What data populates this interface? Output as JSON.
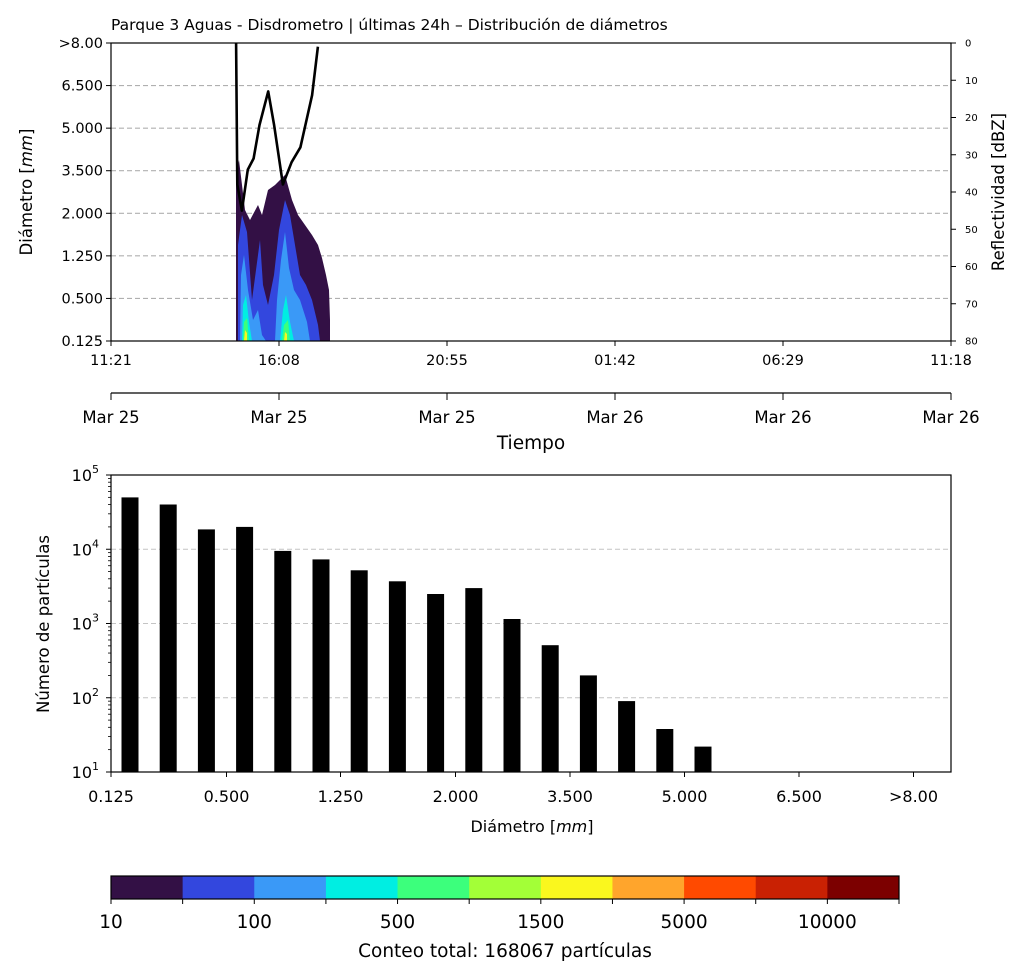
{
  "chart_data": [
    {
      "type": "heatmap",
      "title": "Parque 3 Aguas - Disdrometro | últimas 24h – Distribución de diámetros",
      "ylabel_prefix": "Diámetro [",
      "ylabel_unit": "mm",
      "ylabel_suffix": "]",
      "y2label": "Reflectividad [dBZ]",
      "xlabel": "Tiempo",
      "x_time_ticks": [
        "11:21",
        "16:08",
        "20:55",
        "01:42",
        "06:29",
        "11:18"
      ],
      "x_date_ticks": [
        "Mar 25",
        "Mar 25",
        "Mar 25",
        "Mar 26",
        "Mar 26",
        "Mar 26"
      ],
      "y_ticks": [
        "0.125",
        "0.500",
        "1.250",
        "2.000",
        "3.500",
        "5.000",
        "6.500",
        ">8.00"
      ],
      "y2_ticks": [
        "0",
        "10",
        "20",
        "30",
        "40",
        "50",
        "60",
        "70",
        "80"
      ],
      "y2lim": [
        80,
        0
      ],
      "grid": "horizontal dashed",
      "reflectivity_line_color": "#000000",
      "reflectivity_approx": [
        {
          "t": "14:55",
          "dbz": 0
        },
        {
          "t": "14:57",
          "dbz": 38
        },
        {
          "t": "15:05",
          "dbz": 45
        },
        {
          "t": "15:15",
          "dbz": 34
        },
        {
          "t": "15:25",
          "dbz": 31
        },
        {
          "t": "15:35",
          "dbz": 22
        },
        {
          "t": "15:50",
          "dbz": 13
        },
        {
          "t": "16:00",
          "dbz": 22
        },
        {
          "t": "16:15",
          "dbz": 38
        },
        {
          "t": "16:30",
          "dbz": 32
        },
        {
          "t": "16:45",
          "dbz": 28
        },
        {
          "t": "17:05",
          "dbz": 14
        },
        {
          "t": "17:15",
          "dbz": 1
        }
      ]
    },
    {
      "type": "bar",
      "xlabel_prefix": "Diámetro [",
      "xlabel_unit": "mm",
      "xlabel_suffix": "]",
      "ylabel": "Número de partículas",
      "y_scale": "log",
      "ylim": [
        10,
        100000
      ],
      "y_ticks": [
        {
          "base": "10",
          "exp": "1"
        },
        {
          "base": "10",
          "exp": "2"
        },
        {
          "base": "10",
          "exp": "3"
        },
        {
          "base": "10",
          "exp": "4"
        },
        {
          "base": "10",
          "exp": "5"
        }
      ],
      "x_ticks": [
        "0.125",
        "0.500",
        "1.250",
        "2.000",
        "3.500",
        "5.000",
        "6.500",
        ">8.00"
      ],
      "bar_color": "#000000",
      "values": [
        50000,
        40000,
        18500,
        20000,
        9500,
        7300,
        5200,
        3700,
        2500,
        3000,
        1150,
        510,
        200,
        90,
        38,
        22,
        0,
        0,
        0,
        0,
        0,
        0
      ],
      "grid": "horizontal dashed"
    }
  ],
  "colorbar": {
    "colors": [
      "#331045",
      "#3347de",
      "#3a99f7",
      "#00eee2",
      "#3cff7c",
      "#a3ff37",
      "#faf71e",
      "#ffa52c",
      "#ff4a00",
      "#c92103",
      "#7c0000"
    ],
    "tick_labels": [
      "10",
      "100",
      "500",
      "1500",
      "5000",
      "10000"
    ],
    "label": "Conteo total: 168067 partículas"
  }
}
